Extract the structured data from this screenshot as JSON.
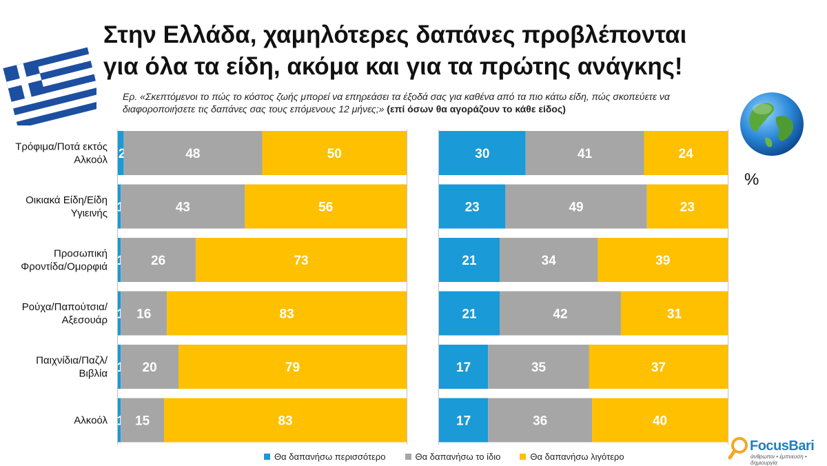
{
  "header": {
    "title_line1": "Στην Ελλάδα, χαμηλότερες δαπάνες προβλέπονται",
    "title_line2": "για όλα τα είδη, ακόμα και για τα πρώτης ανάγκης!",
    "question_text": "Ερ. «Σκεπτόμενοι το πώς το κόστος ζωής μπορεί να επηρεάσει τα έξοδά σας για καθένα από τα πιο κάτω είδη, πώς σκοπεύετε να διαφοροποιήσετε τις δαπάνες σας τους επόμενους 12 μήνες;»",
    "question_note": "(επί όσων θα αγοράζουν το κάθε είδος)",
    "unit_label": "%"
  },
  "brand": {
    "logo_text": "FocusBari",
    "logo_tagline": "άνθρωποι • έμπνευση • δημιουργία"
  },
  "colors": {
    "more": "#1a9ad6",
    "same": "#a6a6a6",
    "less": "#ffc000"
  },
  "icons": {
    "flag": "greece-flag-icon",
    "globe": "globe-icon",
    "logo": "magnifier-logo-icon"
  },
  "chart_data": [
    {
      "type": "bar",
      "orientation": "horizontal",
      "stacked": true,
      "region": "Greece",
      "xlim": [
        0,
        100
      ],
      "categories": [
        "Τρόφιμα/Ποτά εκτός Αλκοόλ",
        "Οικιακά Είδη/Είδη Υγιεινής",
        "Προσωπική Φροντίδα/Ομορφιά",
        "Ρούχα/Παπούτσια/ Αξεσουάρ",
        "Παιχνίδια/Παζλ/ Βιβλία",
        "Αλκοόλ"
      ],
      "series": [
        {
          "name": "Θα δαπανήσω περισσότερο",
          "values": [
            2,
            1,
            1,
            1,
            1,
            1
          ]
        },
        {
          "name": "Θα δαπανήσω το ίδιο",
          "values": [
            48,
            43,
            26,
            16,
            20,
            15
          ]
        },
        {
          "name": "Θα δαπανήσω λιγότερο",
          "values": [
            50,
            56,
            73,
            83,
            79,
            83
          ]
        }
      ],
      "legend": "bottom"
    },
    {
      "type": "bar",
      "orientation": "horizontal",
      "stacked": true,
      "region": "World",
      "xlim": [
        0,
        100
      ],
      "categories": [
        "Τρόφιμα/Ποτά εκτός Αλκοόλ",
        "Οικιακά Είδη/Είδη Υγιεινής",
        "Προσωπική Φροντίδα/Ομορφιά",
        "Ρούχα/Παπούτσια/ Αξεσουάρ",
        "Παιχνίδια/Παζλ/ Βιβλία",
        "Αλκοόλ"
      ],
      "series": [
        {
          "name": "Θα δαπανήσω περισσότερο",
          "values": [
            30,
            23,
            21,
            21,
            17,
            17
          ]
        },
        {
          "name": "Θα δαπανήσω το ίδιο",
          "values": [
            41,
            49,
            34,
            42,
            35,
            36
          ]
        },
        {
          "name": "Θα δαπανήσω λιγότερο",
          "values": [
            24,
            23,
            39,
            31,
            37,
            40
          ]
        }
      ],
      "legend": "bottom"
    }
  ]
}
